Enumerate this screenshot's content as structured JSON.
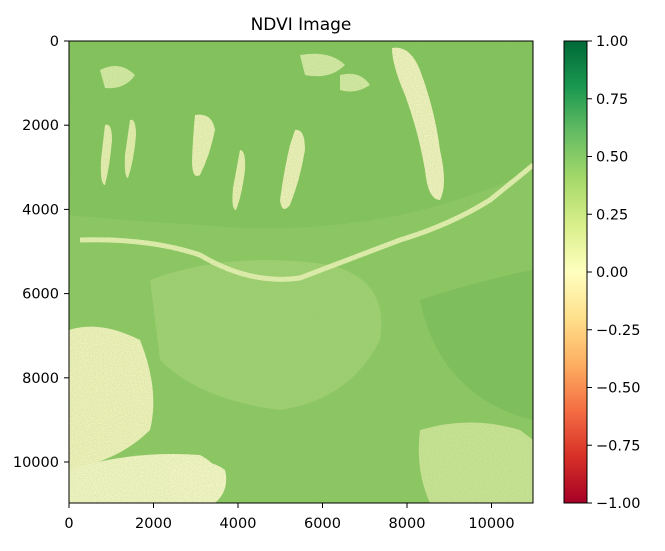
{
  "chart_data": {
    "type": "heatmap",
    "title": "NDVI Image",
    "xlabel": "",
    "ylabel": "",
    "xlim": [
      0,
      10980
    ],
    "ylim": [
      10980,
      0
    ],
    "x_ticks": [
      0,
      2000,
      4000,
      6000,
      8000,
      10000
    ],
    "y_ticks": [
      0,
      2000,
      4000,
      6000,
      8000,
      10000
    ],
    "x_tick_labels": [
      "0",
      "2000",
      "4000",
      "6000",
      "8000",
      "10000"
    ],
    "y_tick_labels": [
      "0",
      "2000",
      "4000",
      "6000",
      "8000",
      "10000"
    ],
    "colormap": "RdYlGn",
    "value_range": [
      -1.0,
      1.0
    ],
    "colorbar": {
      "ticks": [
        1.0,
        0.75,
        0.5,
        0.25,
        0.0,
        -0.25,
        -0.5,
        -0.75,
        -1.0
      ],
      "tick_labels": [
        "1.00",
        "0.75",
        "0.50",
        "0.25",
        "0.00",
        "−0.25",
        "−0.50",
        "−0.75",
        "−1.00"
      ],
      "colors": [
        "#006837",
        "#1a9850",
        "#66bd63",
        "#a6d96a",
        "#d9ef8b",
        "#ffffbf",
        "#fee08b",
        "#fdae61",
        "#f46d43",
        "#d73027",
        "#a50026"
      ]
    },
    "image_palette": {
      "dominant": "#8cc660",
      "vegetation_dark": "#5aa448",
      "bare_light": "#e3efaa",
      "water_pale": "#f8f6c4"
    }
  }
}
